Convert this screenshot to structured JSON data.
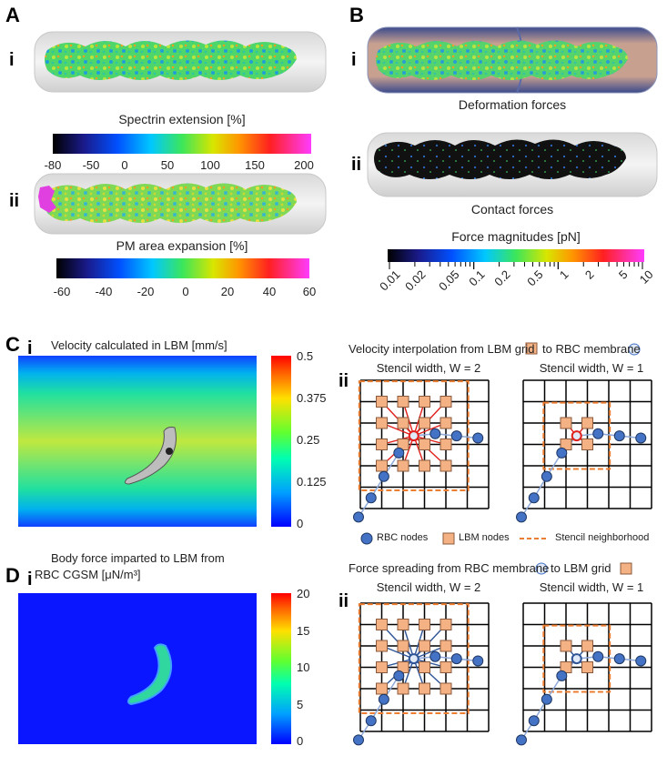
{
  "panels": {
    "A": {
      "letter": "A",
      "i": {
        "label": "i",
        "caption": "Spectrin extension [%]",
        "ticks": [
          "-80",
          "-50",
          "0",
          "50",
          "100",
          "150",
          "200"
        ]
      },
      "ii": {
        "label": "ii",
        "caption": "PM area expansion [%]",
        "ticks": [
          "-60",
          "-40",
          "-20",
          "0",
          "20",
          "40",
          "60"
        ]
      }
    },
    "B": {
      "letter": "B",
      "i": {
        "label": "i",
        "caption": "Deformation forces"
      },
      "ii": {
        "label": "ii",
        "caption": "Contact forces"
      },
      "colorbar_title": "Force magnitudes [pN]",
      "ticks": [
        "0.01",
        "0.02",
        "0.05",
        "0.1",
        "0.2",
        "0.5",
        "1",
        "2",
        "5",
        "10"
      ]
    },
    "C": {
      "letter": "C",
      "i": {
        "label": "i",
        "title": "Velocity calculated in LBM [mm/s]",
        "ticks": [
          "0.5",
          "0.375",
          "0.25",
          "0.125",
          "0"
        ]
      },
      "ii": {
        "label": "ii",
        "title_part1": "Velocity interpolation from LBM grid",
        "title_part2": "to RBC membrane",
        "left_title": "Stencil width, W = 2",
        "right_title": "Stencil width, W = 1"
      },
      "legend": {
        "rbc": "RBC nodes",
        "lbm": "LBM nodes",
        "stencil": "Stencil neighborhood"
      }
    },
    "D": {
      "letter": "D",
      "i": {
        "label": "i",
        "title_line1": "Body force imparted to LBM from",
        "title_line2": "RBC CGSM [μN/m³]",
        "ticks": [
          "20",
          "15",
          "10",
          "5",
          "0"
        ]
      },
      "ii": {
        "label": "ii",
        "title_part1": "Force spreading from RBC membrane",
        "title_part2": "to LBM grid",
        "left_title": "Stencil width, W = 2",
        "right_title": "Stencil width, W = 1"
      }
    }
  },
  "colors": {
    "lbm_node": "#f4b184",
    "lbm_stroke": "#8c5a3c",
    "rbc_node": "#4472c4",
    "stencil": "#ed7d31",
    "interp_line": "#e0201b",
    "spread_line": "#2f5597"
  }
}
